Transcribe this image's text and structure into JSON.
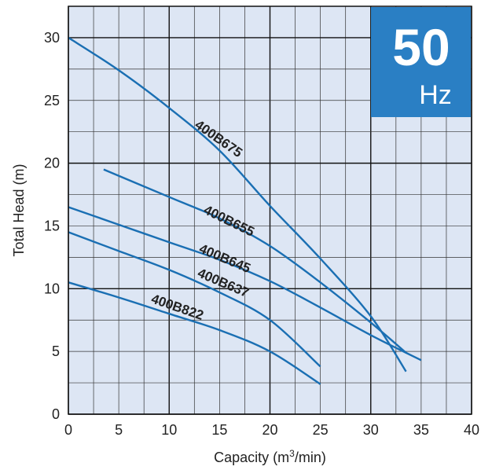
{
  "badge": {
    "value": "50",
    "unit": "Hz"
  },
  "colors": {
    "plot_bg": "#dde6f4",
    "grid_minor": "#333333",
    "curve": "#1a6fb3",
    "badge_bg": "#2a7fc4"
  },
  "chart_data": {
    "type": "line",
    "title": "",
    "xlabel_prefix": "Capacity (m",
    "xlabel_sup": "3",
    "xlabel_suffix": "/min)",
    "ylabel": "Total Head (m)",
    "xlim": [
      0,
      40
    ],
    "ylim": [
      0,
      32.5
    ],
    "grid": true,
    "x_ticks": [
      "0",
      "5",
      "10",
      "15",
      "20",
      "25",
      "30",
      "35",
      "40"
    ],
    "y_ticks": [
      "0",
      "5",
      "10",
      "15",
      "20",
      "25",
      "30"
    ],
    "series": [
      {
        "name": "400B675",
        "points": [
          [
            0,
            30
          ],
          [
            5,
            27.4
          ],
          [
            10,
            24.4
          ],
          [
            15,
            21
          ],
          [
            20,
            16.6
          ],
          [
            25,
            12.4
          ],
          [
            30,
            7.8
          ],
          [
            33.5,
            3.4
          ]
        ]
      },
      {
        "name": "400B655",
        "points": [
          [
            3.5,
            19.5
          ],
          [
            10,
            17.3
          ],
          [
            15,
            15.6
          ],
          [
            20,
            13.4
          ],
          [
            25,
            10.5
          ],
          [
            30,
            7.3
          ],
          [
            33.5,
            4.9
          ]
        ]
      },
      {
        "name": "400B645",
        "points": [
          [
            0,
            16.5
          ],
          [
            5,
            15.1
          ],
          [
            10,
            13.7
          ],
          [
            15,
            12.3
          ],
          [
            20,
            10.6
          ],
          [
            25,
            8.5
          ],
          [
            30,
            6.3
          ],
          [
            35,
            4.3
          ]
        ]
      },
      {
        "name": "400B637",
        "points": [
          [
            0,
            14.5
          ],
          [
            5,
            13
          ],
          [
            10,
            11.5
          ],
          [
            15,
            9.7
          ],
          [
            20,
            7.5
          ],
          [
            25,
            3.8
          ]
        ]
      },
      {
        "name": "400B822",
        "points": [
          [
            0,
            10.5
          ],
          [
            5,
            9.3
          ],
          [
            10,
            8
          ],
          [
            15,
            6.7
          ],
          [
            20,
            5
          ],
          [
            25,
            2.4
          ]
        ]
      }
    ]
  }
}
